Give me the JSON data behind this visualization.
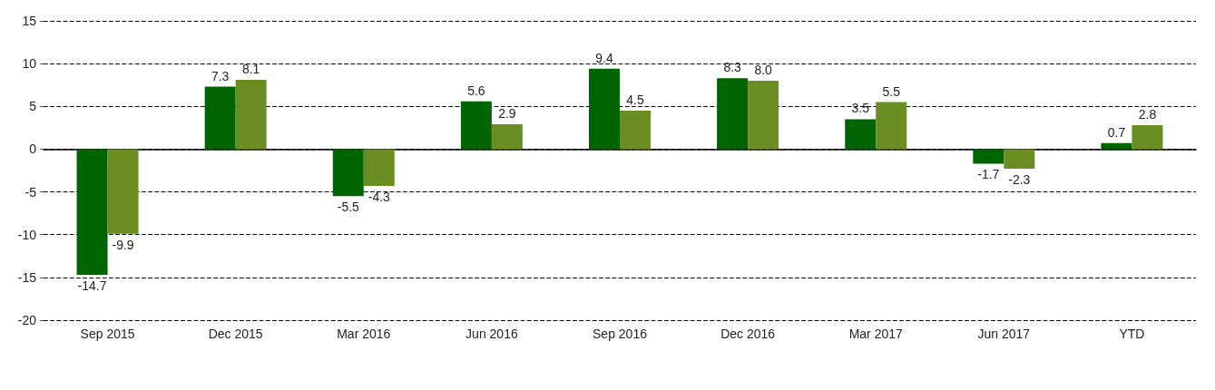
{
  "chart_data": {
    "type": "bar",
    "categories": [
      "Sep 2015",
      "Dec 2015",
      "Mar 2016",
      "Jun 2016",
      "Sep 2016",
      "Dec 2016",
      "Mar 2017",
      "Jun 2017",
      "YTD"
    ],
    "series": [
      {
        "color": "#006400",
        "values": [
          -14.7,
          7.3,
          -5.5,
          5.6,
          9.4,
          8.3,
          3.5,
          -1.7,
          0.7
        ],
        "value_labels": [
          "-14.7",
          "7.3",
          "-5.5",
          "5.6",
          "9.4",
          "8.3",
          "3.5",
          "-1.7",
          "0.7"
        ]
      },
      {
        "color": "#6b8e23",
        "values": [
          -9.9,
          8.1,
          -4.3,
          2.9,
          4.5,
          8.0,
          5.5,
          -2.3,
          2.8
        ],
        "value_labels": [
          "-9.9",
          "8.1",
          "-4.3",
          "2.9",
          "4.5",
          "8.0",
          "5.5",
          "-2.3",
          "2.8"
        ]
      }
    ],
    "ylim": [
      -20,
      15
    ],
    "yticks": [
      -20,
      -15,
      -10,
      -5,
      0,
      5,
      10,
      15
    ],
    "grid": "y"
  }
}
